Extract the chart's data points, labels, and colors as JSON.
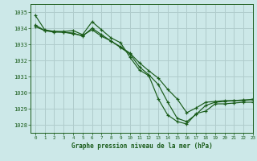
{
  "title": "Graphe pression niveau de la mer (hPa)",
  "background_color": "#cce8e8",
  "grid_color": "#b0cccc",
  "line_color": "#1a5c1a",
  "xlim": [
    -0.5,
    23
  ],
  "ylim": [
    1027.5,
    1035.5
  ],
  "yticks": [
    1028,
    1029,
    1030,
    1031,
    1032,
    1033,
    1034,
    1035
  ],
  "xticks": [
    0,
    1,
    2,
    3,
    4,
    5,
    6,
    7,
    8,
    9,
    10,
    11,
    12,
    13,
    14,
    15,
    16,
    17,
    18,
    19,
    20,
    21,
    22,
    23
  ],
  "series": [
    [
      1034.8,
      1033.9,
      1033.8,
      1033.8,
      1033.85,
      1033.6,
      1034.4,
      1033.9,
      1033.4,
      1033.1,
      1032.2,
      1031.4,
      1031.05,
      1029.6,
      1028.6,
      1028.2,
      1028.05,
      1028.7,
      1028.85,
      1029.3,
      1029.3,
      1029.35,
      1029.4,
      1029.4
    ],
    [
      1034.2,
      1033.85,
      1033.75,
      1033.75,
      1033.7,
      1033.5,
      1034.0,
      1033.6,
      1033.2,
      1032.8,
      1032.4,
      1031.6,
      1031.1,
      1030.5,
      1029.4,
      1028.4,
      1028.2,
      1028.65,
      1029.2,
      1029.4,
      1029.45,
      1029.5,
      1029.5,
      1029.6
    ],
    [
      1034.1,
      1033.85,
      1033.8,
      1033.75,
      1033.65,
      1033.55,
      1033.9,
      1033.5,
      1033.2,
      1032.85,
      1032.45,
      1031.85,
      1031.35,
      1030.9,
      1030.2,
      1029.6,
      1028.75,
      1029.05,
      1029.4,
      1029.45,
      1029.5,
      1029.5,
      1029.55,
      1029.55
    ]
  ]
}
